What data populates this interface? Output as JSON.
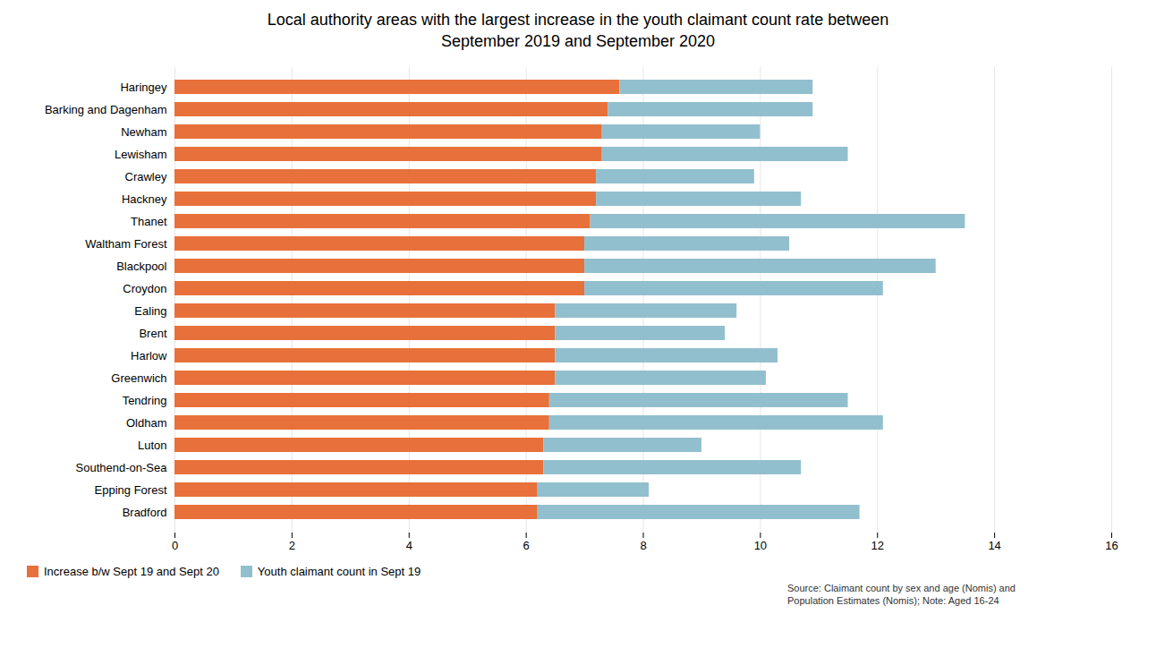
{
  "chart_data": {
    "type": "bar",
    "title": "Local authority areas with the largest increase in the youth claimant count rate between\nSeptember 2019 and September 2020",
    "orientation": "horizontal",
    "stacked": true,
    "categories": [
      "Haringey",
      "Barking and Dagenham",
      "Newham",
      "Lewisham",
      "Crawley",
      "Hackney",
      "Thanet",
      "Waltham Forest",
      "Blackpool",
      "Croydon",
      "Ealing",
      "Brent",
      "Harlow",
      "Greenwich",
      "Tendring",
      "Oldham",
      "Luton",
      "Southend-on-Sea",
      "Epping Forest",
      "Bradford"
    ],
    "series": [
      {
        "name": "Increase b/w Sept 19 and Sept 20",
        "color": "#E8703A",
        "values": [
          7.6,
          7.4,
          7.3,
          7.3,
          7.2,
          7.2,
          7.1,
          7.0,
          7.0,
          7.0,
          6.5,
          6.5,
          6.5,
          6.5,
          6.4,
          6.4,
          6.3,
          6.3,
          6.2,
          6.2
        ]
      },
      {
        "name": "Youth claimant count in Sept 19",
        "color": "#92BFCE",
        "values": [
          3.3,
          3.5,
          2.7,
          4.2,
          2.7,
          3.5,
          6.4,
          3.5,
          6.0,
          5.1,
          3.1,
          2.9,
          3.8,
          3.6,
          5.1,
          5.7,
          2.7,
          4.4,
          1.9,
          5.5
        ]
      }
    ],
    "xlim": [
      0,
      16
    ],
    "xticks": [
      0,
      2,
      4,
      6,
      8,
      10,
      12,
      14,
      16
    ],
    "grid": true,
    "legend": "bottom",
    "annotation": "Source: Claimant count by sex and age (Nomis) and\nPopulation Estimates (Nomis); Note: Aged 16-24"
  }
}
